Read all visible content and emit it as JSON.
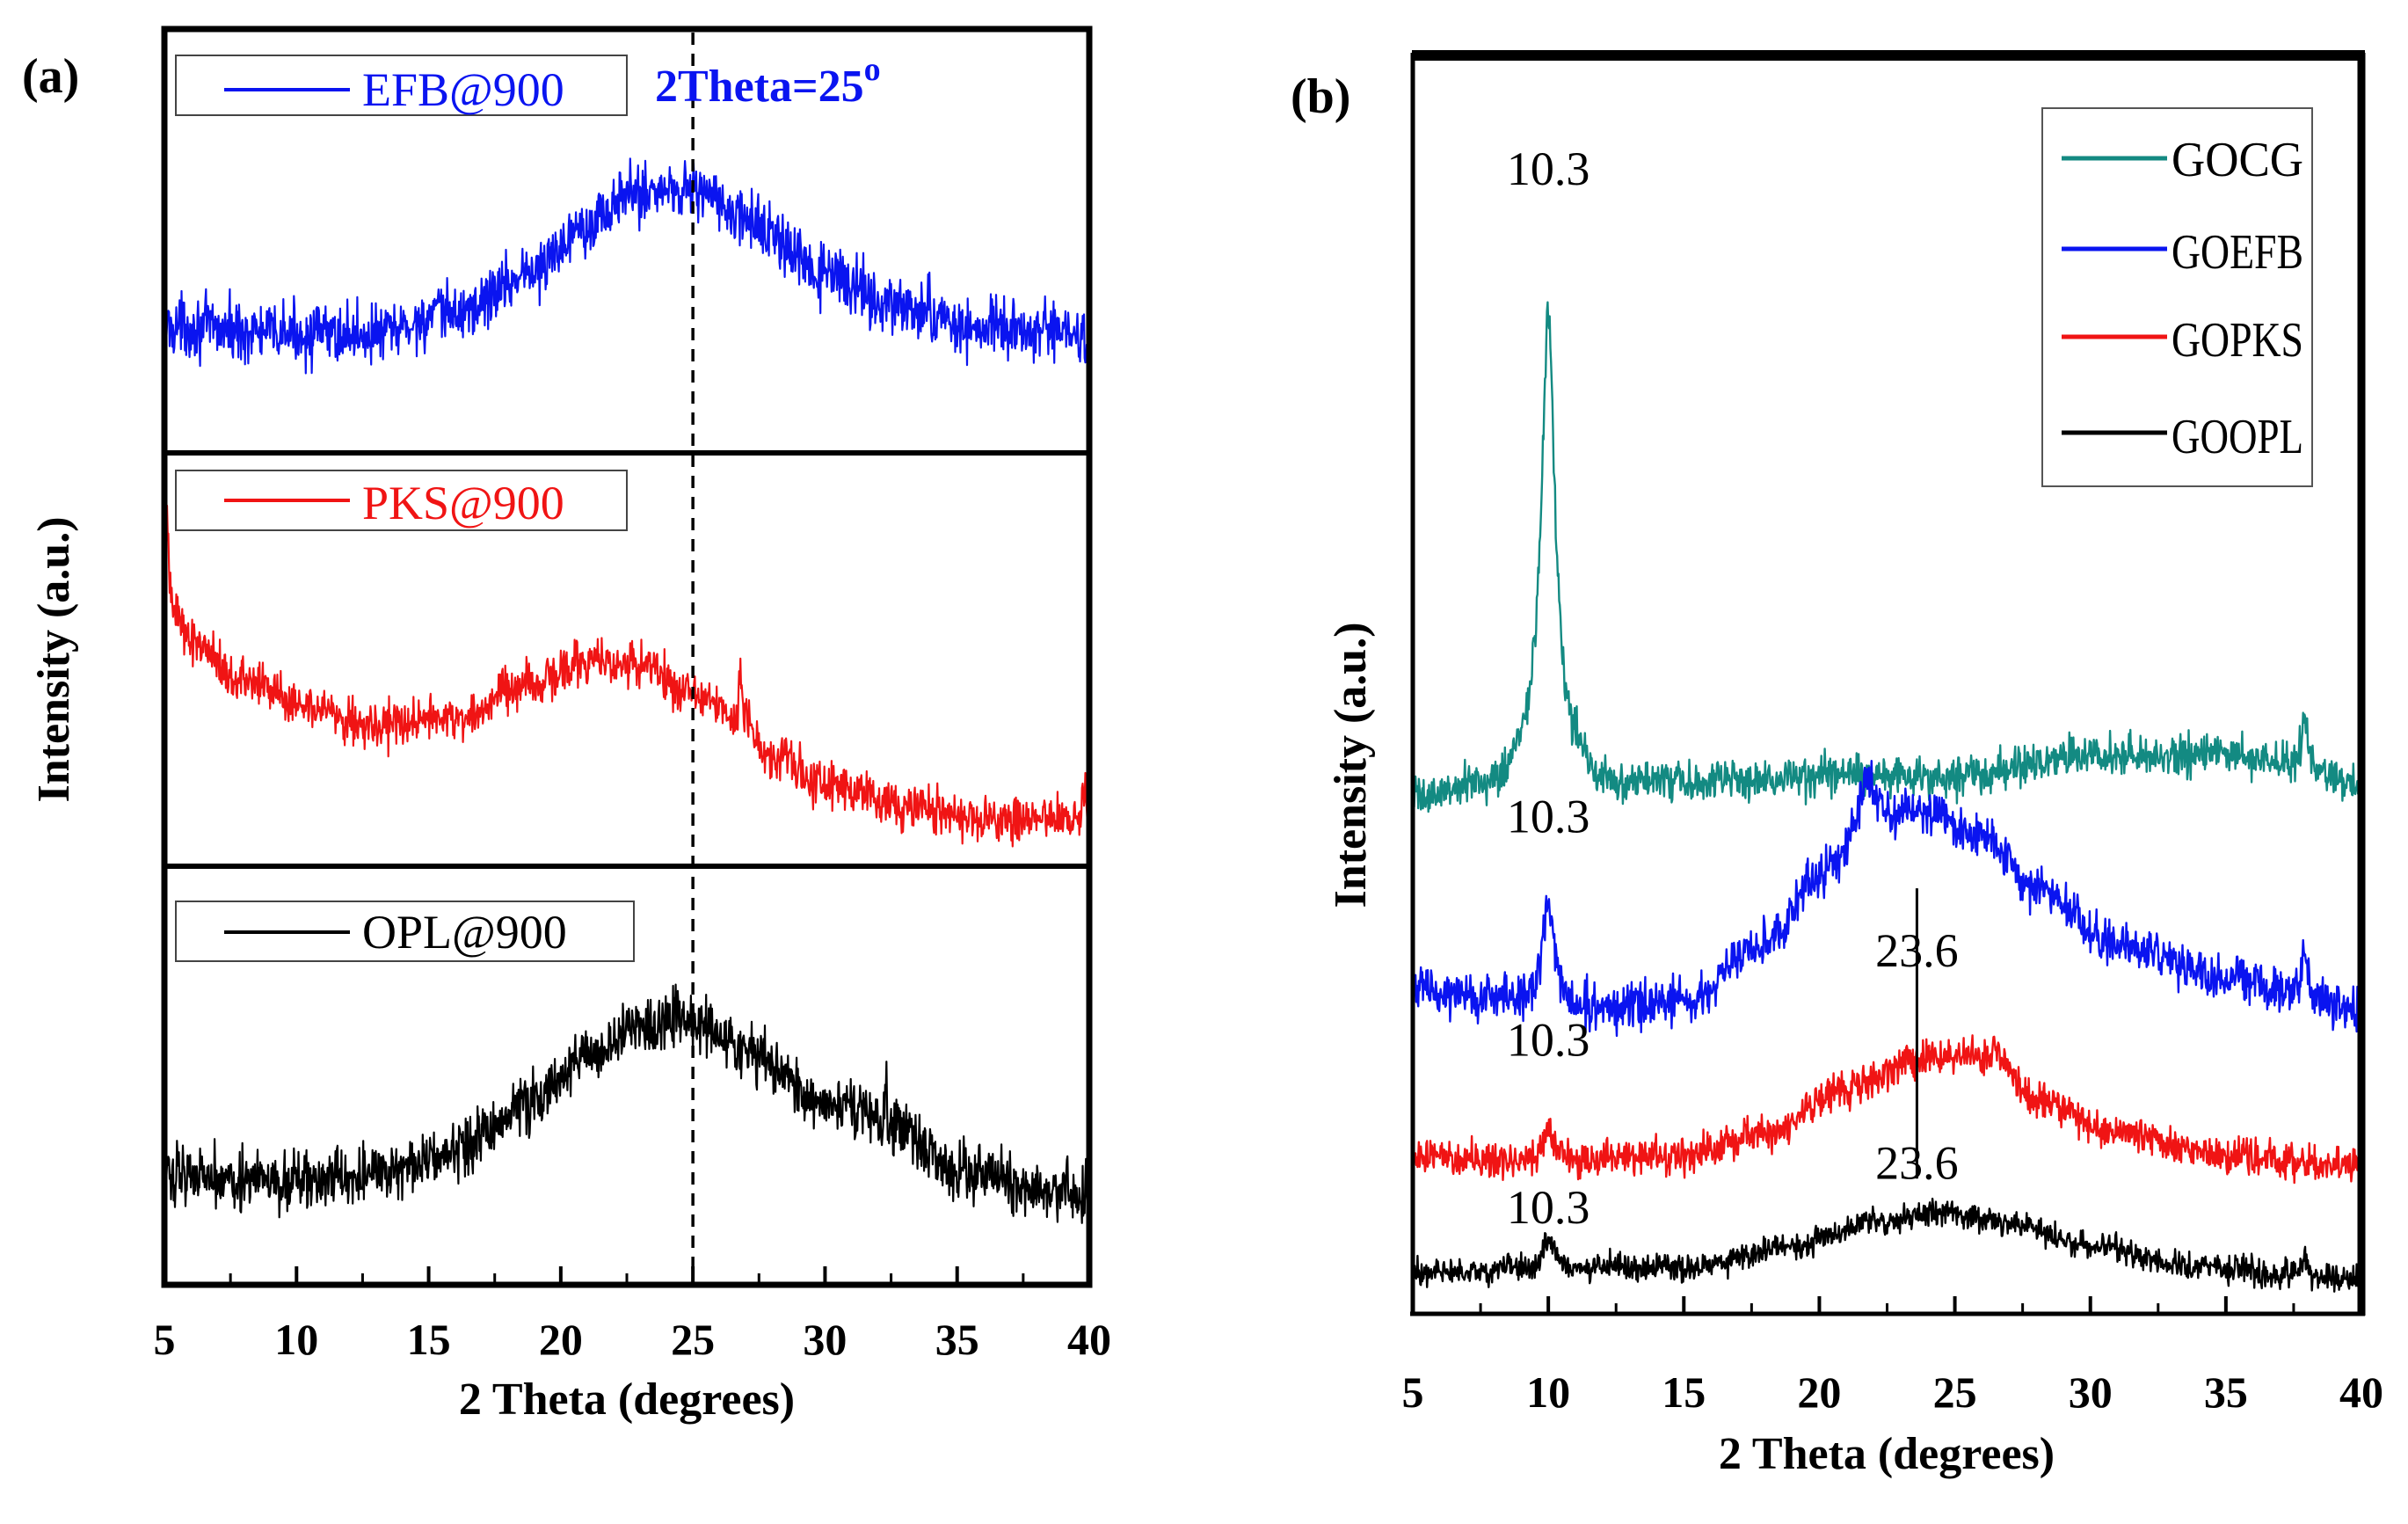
{
  "colors": {
    "blue": "#0a14f0",
    "red": "#f01414",
    "black": "#000000",
    "teal": "#138a82"
  },
  "chart_data": [
    {
      "id": "a",
      "panel_label": "(a)",
      "type": "line",
      "xlabel": "2 Theta (degrees)",
      "ylabel": "Intensity (a.u.)",
      "xlim": [
        5,
        40
      ],
      "xticks": [
        "5",
        "10",
        "15",
        "20",
        "25",
        "30",
        "35",
        "40"
      ],
      "vertical_reference": {
        "x": 25,
        "label_main": "2Theta=25",
        "label_sup": "o"
      },
      "subplots": [
        {
          "name": "EFB@900",
          "color": "#0a14f0",
          "ylim": [
            0,
            1
          ],
          "baseline_points": [
            [
              5,
              0.3
            ],
            [
              10,
              0.28
            ],
            [
              13,
              0.28
            ],
            [
              16,
              0.33
            ],
            [
              19,
              0.43
            ],
            [
              21,
              0.55
            ],
            [
              23,
              0.62
            ],
            [
              25,
              0.63
            ],
            [
              27,
              0.55
            ],
            [
              30,
              0.42
            ],
            [
              33,
              0.34
            ],
            [
              36,
              0.29
            ],
            [
              40,
              0.28
            ]
          ],
          "noise": 0.07
        },
        {
          "name": "PKS@900",
          "color": "#f01414",
          "ylim": [
            0,
            1
          ],
          "baseline_points": [
            [
              5,
              0.68
            ],
            [
              6,
              0.55
            ],
            [
              8,
              0.45
            ],
            [
              10,
              0.4
            ],
            [
              13,
              0.34
            ],
            [
              16,
              0.36
            ],
            [
              19,
              0.44
            ],
            [
              21,
              0.5
            ],
            [
              23,
              0.49
            ],
            [
              25,
              0.42
            ],
            [
              26.8,
              0.36
            ],
            [
              28,
              0.27
            ],
            [
              30,
              0.2
            ],
            [
              33,
              0.14
            ],
            [
              36,
              0.11
            ],
            [
              40,
              0.11
            ]
          ],
          "noise": 0.055,
          "spikes": [
            [
              5.1,
              0.14
            ],
            [
              26.8,
              0.15
            ],
            [
              39.8,
              0.08
            ]
          ]
        },
        {
          "name": "OPL@900",
          "color": "#000000",
          "ylim": [
            0,
            1
          ],
          "baseline_points": [
            [
              5,
              0.27
            ],
            [
              10,
              0.24
            ],
            [
              13,
              0.26
            ],
            [
              16,
              0.32
            ],
            [
              19,
              0.44
            ],
            [
              21,
              0.55
            ],
            [
              23,
              0.63
            ],
            [
              25,
              0.63
            ],
            [
              27,
              0.55
            ],
            [
              30,
              0.44
            ],
            [
              32.5,
              0.38
            ],
            [
              35,
              0.27
            ],
            [
              38,
              0.22
            ],
            [
              40,
              0.22
            ]
          ],
          "noise": 0.07,
          "spikes": [
            [
              32.3,
              0.1
            ]
          ]
        }
      ]
    },
    {
      "id": "b",
      "panel_label": "(b)",
      "type": "line",
      "xlabel": "2 Theta (degrees)",
      "ylabel": "Intensity (a.u.)",
      "xlim": [
        5,
        40
      ],
      "ylim": [
        0,
        1
      ],
      "xticks": [
        "5",
        "10",
        "15",
        "20",
        "25",
        "30",
        "35",
        "40"
      ],
      "series": [
        {
          "name": "GOCG",
          "color": "#138a82",
          "baseline_points": [
            [
              5,
              0.45
            ],
            [
              8,
              0.46
            ],
            [
              9,
              0.48
            ],
            [
              11,
              0.48
            ],
            [
              12,
              0.46
            ],
            [
              15,
              0.465
            ],
            [
              20,
              0.47
            ],
            [
              25,
              0.47
            ],
            [
              30,
              0.49
            ],
            [
              35,
              0.49
            ],
            [
              38,
              0.48
            ],
            [
              40,
              0.46
            ]
          ],
          "noise": 0.018,
          "peaks": [
            [
              10.0,
              0.41,
              0.3
            ],
            [
              37.9,
              0.05,
              0.1
            ]
          ]
        },
        {
          "name": "GOEFB",
          "color": "#0a14f0",
          "baseline_points": [
            [
              5,
              0.28
            ],
            [
              8,
              0.27
            ],
            [
              12,
              0.26
            ],
            [
              15,
              0.27
            ],
            [
              18,
              0.32
            ],
            [
              20,
              0.38
            ],
            [
              22,
              0.43
            ],
            [
              24,
              0.44
            ],
            [
              26,
              0.42
            ],
            [
              28,
              0.37
            ],
            [
              31,
              0.32
            ],
            [
              35,
              0.29
            ],
            [
              40,
              0.26
            ]
          ],
          "noise": 0.02,
          "peaks": [
            [
              10.0,
              0.1,
              0.25
            ],
            [
              21.8,
              0.04,
              0.35
            ],
            [
              37.9,
              0.04,
              0.12
            ]
          ]
        },
        {
          "name": "GOPKS",
          "color": "#f01414",
          "baseline_points": [
            [
              5,
              0.13
            ],
            [
              10,
              0.125
            ],
            [
              15,
              0.13
            ],
            [
              18,
              0.15
            ],
            [
              21,
              0.19
            ],
            [
              24,
              0.22
            ],
            [
              26.5,
              0.22
            ],
            [
              28,
              0.18
            ],
            [
              31,
              0.15
            ],
            [
              35,
              0.13
            ],
            [
              40,
              0.12
            ]
          ],
          "noise": 0.016,
          "peaks": [
            [
              10.0,
              0.03,
              0.25
            ]
          ]
        },
        {
          "name": "GOOPL",
          "color": "#000000",
          "baseline_points": [
            [
              5,
              0.025
            ],
            [
              10,
              0.03
            ],
            [
              15,
              0.03
            ],
            [
              19,
              0.05
            ],
            [
              22,
              0.07
            ],
            [
              24.5,
              0.08
            ],
            [
              27,
              0.07
            ],
            [
              30,
              0.05
            ],
            [
              34,
              0.03
            ],
            [
              40,
              0.02
            ]
          ],
          "noise": 0.012,
          "peaks": [
            [
              10.0,
              0.025,
              0.22
            ],
            [
              37.9,
              0.02,
              0.1
            ]
          ]
        }
      ],
      "annotations": [
        {
          "text": "10.3",
          "x": 10.0,
          "y": 1.0
        },
        {
          "text": "10.3",
          "x": 10.0,
          "y": 0.42
        },
        {
          "text": "23.6",
          "x": 23.6,
          "y": 0.3,
          "marker_y0": 0.11,
          "marker_y1": 0.37
        },
        {
          "text": "10.3",
          "x": 10.0,
          "y": 0.22
        },
        {
          "text": "23.6",
          "x": 23.6,
          "y": 0.11
        },
        {
          "text": "10.3",
          "x": 10.0,
          "y": 0.07
        }
      ]
    }
  ]
}
